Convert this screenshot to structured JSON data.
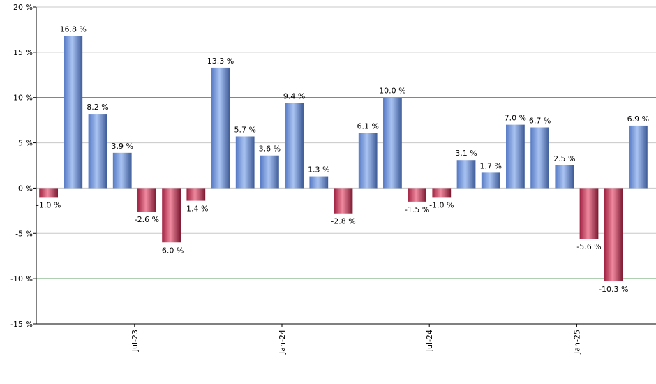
{
  "chart_data": {
    "type": "bar",
    "title": "",
    "xlabel": "",
    "ylabel": "",
    "ylim": [
      -15,
      20
    ],
    "y_ticks": [
      20,
      15,
      10,
      5,
      0,
      -5,
      -10,
      -15
    ],
    "y_tick_labels": [
      "20 %",
      "15 %",
      "10 %",
      "5 %",
      "0 %",
      "-5 %",
      "-10 %",
      "-15 %"
    ],
    "highlight_lines": [
      10,
      -10
    ],
    "grid": true,
    "x_tick_labels": [
      {
        "label": "Jul-23",
        "after_index": 3
      },
      {
        "label": "Jan-24",
        "after_index": 9
      },
      {
        "label": "Jul-24",
        "after_index": 15
      },
      {
        "label": "Jan-25",
        "after_index": 21
      }
    ],
    "values": [
      -1.0,
      16.8,
      8.2,
      3.9,
      -2.6,
      -6.0,
      -1.4,
      13.3,
      5.7,
      3.6,
      9.4,
      1.3,
      -2.8,
      6.1,
      10.0,
      -1.5,
      -1.0,
      3.1,
      1.7,
      7.0,
      6.7,
      2.5,
      -5.6,
      -10.3,
      6.9
    ],
    "data_labels": [
      "-1.0 %",
      "16.8 %",
      "8.2 %",
      "3.9 %",
      "-2.6 %",
      "-6.0 %",
      "-1.4 %",
      "13.3 %",
      "5.7 %",
      "3.6 %",
      "9.4 %",
      "1.3 %",
      "-2.8 %",
      "6.1 %",
      "10.0 %",
      "-1.5 %",
      "-1.0 %",
      "3.1 %",
      "1.7 %",
      "7.0 %",
      "6.7 %",
      "2.5 %",
      "-5.6 %",
      "-10.3 %",
      "6.9 %"
    ],
    "colors": {
      "positive": "#6f95dc",
      "positive_dark": "#3d5a96",
      "negative": "#cc3355",
      "negative_dark": "#7a1830",
      "grid": "#c8c8c8",
      "highlight": "#2e7d32",
      "axis": "#000000"
    }
  }
}
